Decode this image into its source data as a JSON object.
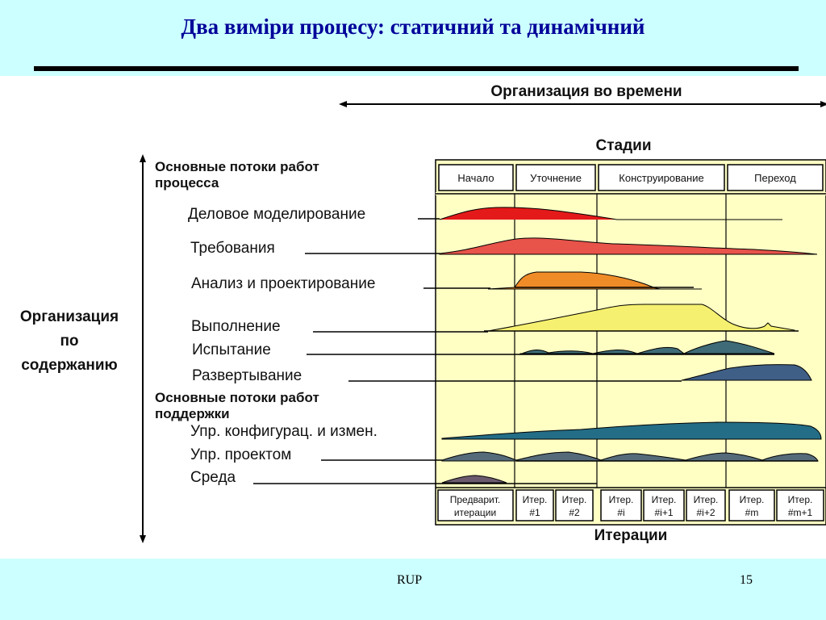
{
  "slide": {
    "title": "Два виміри процесу: статичний та динамічний",
    "footer_left": "RUP",
    "page_number": "15"
  },
  "diagram": {
    "time_axis_label": "Организация во времени",
    "content_axis_label": [
      "Организация",
      "по",
      "содержанию"
    ],
    "stages_label": "Стадии",
    "iterations_label": "Итерации",
    "core_header": [
      "Основные потоки работ",
      "процесса"
    ],
    "support_header": [
      "Основные потоки работ",
      "поддержки"
    ],
    "phases": [
      "Начало",
      "Уточнение",
      "Конструирование",
      "Переход"
    ],
    "iterations": [
      [
        "Предварит.",
        "итерации"
      ],
      [
        "Итер.",
        "#1"
      ],
      [
        "Итер.",
        "#2"
      ],
      [
        "Итер.",
        "#i"
      ],
      [
        "Итер.",
        "#i+1"
      ],
      [
        "Итер.",
        "#i+2"
      ],
      [
        "Итер.",
        "#m"
      ],
      [
        "Итер.",
        "#m+1"
      ]
    ],
    "workflows": [
      {
        "label": "Деловое моделирование",
        "color": "#e41a1a"
      },
      {
        "label": "Требования",
        "color": "#e8534a"
      },
      {
        "label": "Анализ и проектирование",
        "color": "#f08c28"
      },
      {
        "label": "Выполнение",
        "color": "#f6f070"
      },
      {
        "label": "Испытание",
        "color": "#3f6b78"
      },
      {
        "label": "Развертывание",
        "color": "#3f5f86"
      },
      {
        "label": "Упр. конфигурац. и измен.",
        "color": "#246d86"
      },
      {
        "label": "Упр. проектом",
        "color": "#556b7a"
      },
      {
        "label": "Среда",
        "color": "#6b5a6e"
      }
    ],
    "chart_background": "#ffffc4"
  }
}
